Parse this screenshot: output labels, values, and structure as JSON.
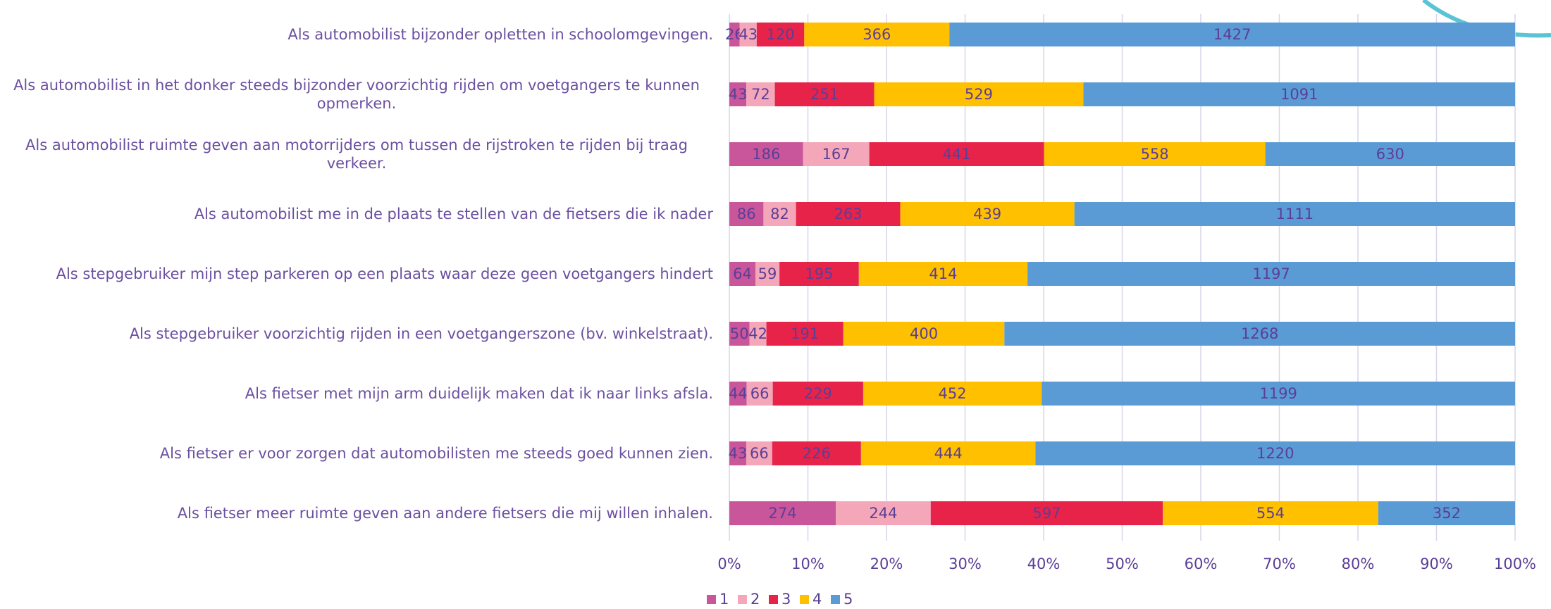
{
  "chart_data": {
    "type": "bar",
    "orientation": "horizontal",
    "stacking": "percent",
    "categories": [
      "Als automobilist bijzonder opletten in schoolomgevingen.",
      "Als automobilist in het donker steeds bijzonder voorzichtig rijden om voetgangers te kunnen opmerken.",
      "Als automobilist ruimte geven aan motorrijders om tussen de rijstroken te rijden bij traag verkeer.",
      "Als automobilist me in de plaats te stellen van de fietsers die ik nader",
      "Als stepgebruiker mijn step parkeren op een plaats waar deze geen voetgangers hindert",
      "Als stepgebruiker voorzichtig rijden in een voetgangerszone (bv. winkelstraat).",
      "Als fietser met mijn arm duidelijk maken dat ik naar links afsla.",
      "Als fietser er voor zorgen dat automobilisten me steeds goed kunnen zien.",
      "Als fietser meer ruimte geven aan andere fietsers die mij willen inhalen."
    ],
    "series": [
      {
        "name": "1",
        "color": "#c9559a",
        "values": [
          26,
          43,
          186,
          86,
          64,
          50,
          44,
          43,
          274
        ]
      },
      {
        "name": "2",
        "color": "#f4a7b9",
        "values": [
          43,
          72,
          167,
          82,
          59,
          42,
          66,
          66,
          244
        ]
      },
      {
        "name": "3",
        "color": "#e8234a",
        "values": [
          120,
          251,
          441,
          263,
          195,
          191,
          229,
          226,
          597
        ]
      },
      {
        "name": "4",
        "color": "#ffc000",
        "values": [
          366,
          529,
          558,
          439,
          414,
          400,
          452,
          444,
          554
        ]
      },
      {
        "name": "5",
        "color": "#5b9bd5",
        "values": [
          1427,
          1091,
          630,
          1111,
          1197,
          1268,
          1199,
          1220,
          352
        ]
      }
    ],
    "xlim": [
      0,
      100
    ],
    "xticks": [
      {
        "value": 0,
        "label": "0%"
      },
      {
        "value": 10,
        "label": "10%"
      },
      {
        "value": 20,
        "label": "20%"
      },
      {
        "value": 30,
        "label": "30%"
      },
      {
        "value": 40,
        "label": "40%"
      },
      {
        "value": 50,
        "label": "50%"
      },
      {
        "value": 60,
        "label": "60%"
      },
      {
        "value": 70,
        "label": "70%"
      },
      {
        "value": 80,
        "label": "80%"
      },
      {
        "value": 90,
        "label": "90%"
      },
      {
        "value": 100,
        "label": "100%"
      }
    ],
    "grid": true,
    "legend": "bottom"
  }
}
